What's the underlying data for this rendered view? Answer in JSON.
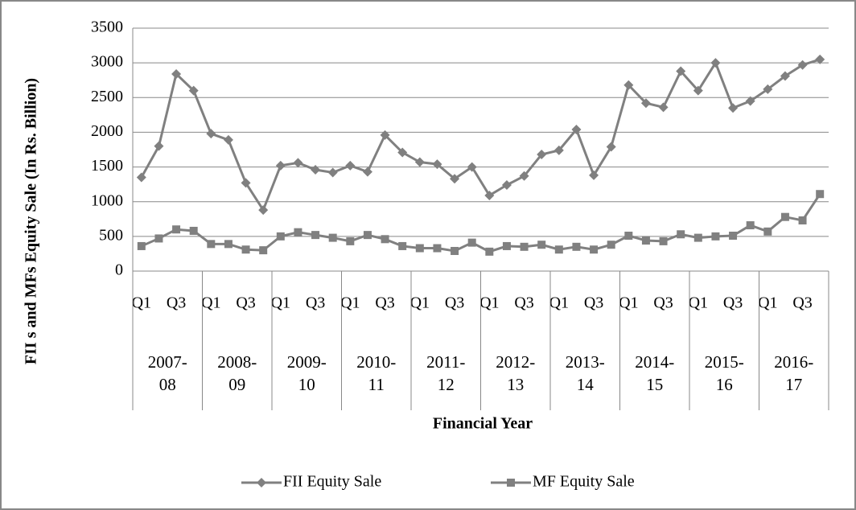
{
  "chart_data": {
    "type": "line",
    "x_label": "Financial Year",
    "y_label": "FII s and MFs Equity Sale (In Rs. Billion)",
    "categories": [
      "Q1",
      null,
      "Q3",
      null,
      "Q1",
      null,
      "Q3",
      null,
      "Q1",
      null,
      "Q3",
      null,
      "Q1",
      null,
      "Q3",
      null,
      "Q1",
      null,
      "Q3",
      null,
      "Q1",
      null,
      "Q3",
      null,
      "Q1",
      null,
      "Q3",
      null,
      "Q1",
      null,
      "Q3",
      null,
      "Q1",
      null,
      "Q3",
      null,
      "Q1",
      null,
      "Q3",
      null
    ],
    "groups": [
      "2007-08",
      "2008-09",
      "2009-10",
      "2010-11",
      "2011-12",
      "2012-13",
      "2013-14",
      "2014-15",
      "2015-16",
      "2016-17"
    ],
    "series": [
      {
        "name": "FII Equity Sale",
        "color": "#808080",
        "marker": "diamond",
        "values": [
          1350,
          1800,
          2840,
          2600,
          1980,
          1890,
          1270,
          880,
          1520,
          1560,
          1460,
          1420,
          1520,
          1430,
          1960,
          1710,
          1570,
          1540,
          1330,
          1500,
          1090,
          1240,
          1370,
          1680,
          1740,
          2040,
          1380,
          1790,
          2680,
          2420,
          2360,
          2880,
          2600,
          3000,
          2350,
          2450,
          2620,
          2810,
          2970,
          3050
        ]
      },
      {
        "name": "MF Equity Sale",
        "color": "#808080",
        "marker": "square",
        "values": [
          360,
          470,
          600,
          580,
          390,
          390,
          310,
          300,
          500,
          560,
          520,
          480,
          430,
          520,
          460,
          360,
          330,
          330,
          290,
          410,
          280,
          360,
          350,
          380,
          310,
          350,
          310,
          380,
          510,
          440,
          430,
          530,
          480,
          500,
          510,
          660,
          570,
          780,
          730,
          1110
        ]
      }
    ],
    "ylim": [
      0,
      3500
    ],
    "yticks": [
      0,
      500,
      1000,
      1500,
      2000,
      2500,
      3000,
      3500
    ],
    "grid": true,
    "legend": "bottom"
  }
}
